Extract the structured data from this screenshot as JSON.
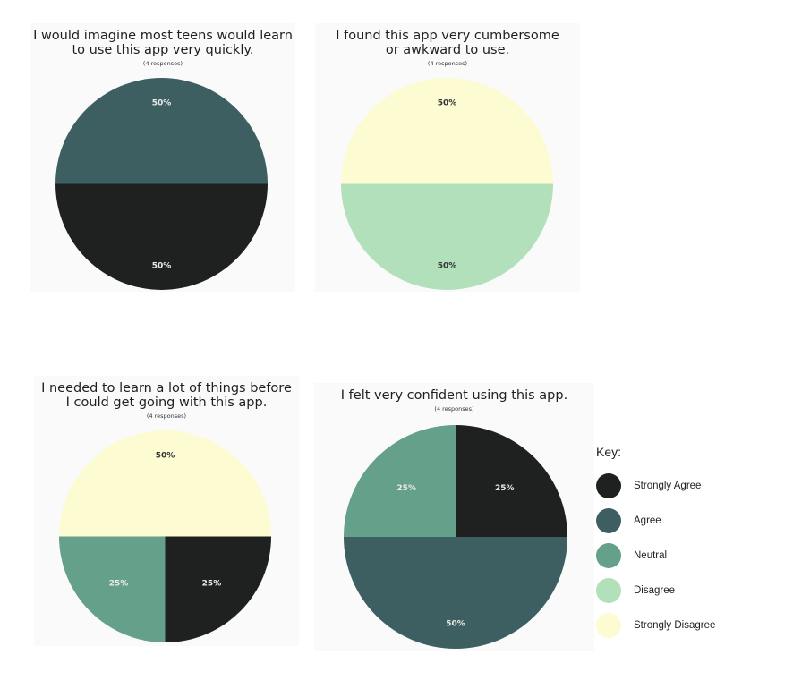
{
  "colors": {
    "strongly_agree": "#1f2121",
    "agree": "#3e5f61",
    "neutral": "#64a08a",
    "disagree": "#b1e0bb",
    "strongly_disagree": "#fdfbd2"
  },
  "chart_data": [
    {
      "type": "pie",
      "title_lines": [
        "I would imagine most teens would learn",
        "to use this app very quickly."
      ],
      "subtitle": "(4 responses)",
      "slices": [
        {
          "category": "Agree",
          "value": 50,
          "label": "50%",
          "color_key": "agree"
        },
        {
          "category": "Strongly Agree",
          "value": 50,
          "label": "50%",
          "color_key": "strongly_agree"
        }
      ]
    },
    {
      "type": "pie",
      "title_lines": [
        "I found this app very cumbersome",
        "or awkward to use."
      ],
      "subtitle": "(4 responses)",
      "slices": [
        {
          "category": "Strongly Disagree",
          "value": 50,
          "label": "50%",
          "color_key": "strongly_disagree"
        },
        {
          "category": "Disagree",
          "value": 50,
          "label": "50%",
          "color_key": "disagree"
        }
      ]
    },
    {
      "type": "pie",
      "title_lines": [
        "I needed to learn a lot of things before",
        "I could get going with this app."
      ],
      "subtitle": "(4 responses)",
      "slices": [
        {
          "category": "Strongly Disagree",
          "value": 50,
          "label": "50%",
          "color_key": "strongly_disagree"
        },
        {
          "category": "Strongly Agree",
          "value": 25,
          "label": "25%",
          "color_key": "strongly_agree"
        },
        {
          "category": "Neutral",
          "value": 25,
          "label": "25%",
          "color_key": "neutral"
        }
      ]
    },
    {
      "type": "pie",
      "title_lines": [
        "I felt very confident using this app."
      ],
      "subtitle": "(4 responses)",
      "slices": [
        {
          "category": "Neutral",
          "value": 25,
          "label": "25%",
          "color_key": "neutral"
        },
        {
          "category": "Strongly Agree",
          "value": 25,
          "label": "25%",
          "color_key": "strongly_agree"
        },
        {
          "category": "Agree",
          "value": 50,
          "label": "50%",
          "color_key": "agree"
        }
      ]
    }
  ],
  "legend": {
    "title": "Key:",
    "items": [
      {
        "label": "Strongly Agree",
        "color_key": "strongly_agree"
      },
      {
        "label": "Agree",
        "color_key": "agree"
      },
      {
        "label": "Neutral",
        "color_key": "neutral"
      },
      {
        "label": "Disagree",
        "color_key": "disagree"
      },
      {
        "label": "Strongly Disagree",
        "color_key": "strongly_disagree"
      }
    ]
  }
}
